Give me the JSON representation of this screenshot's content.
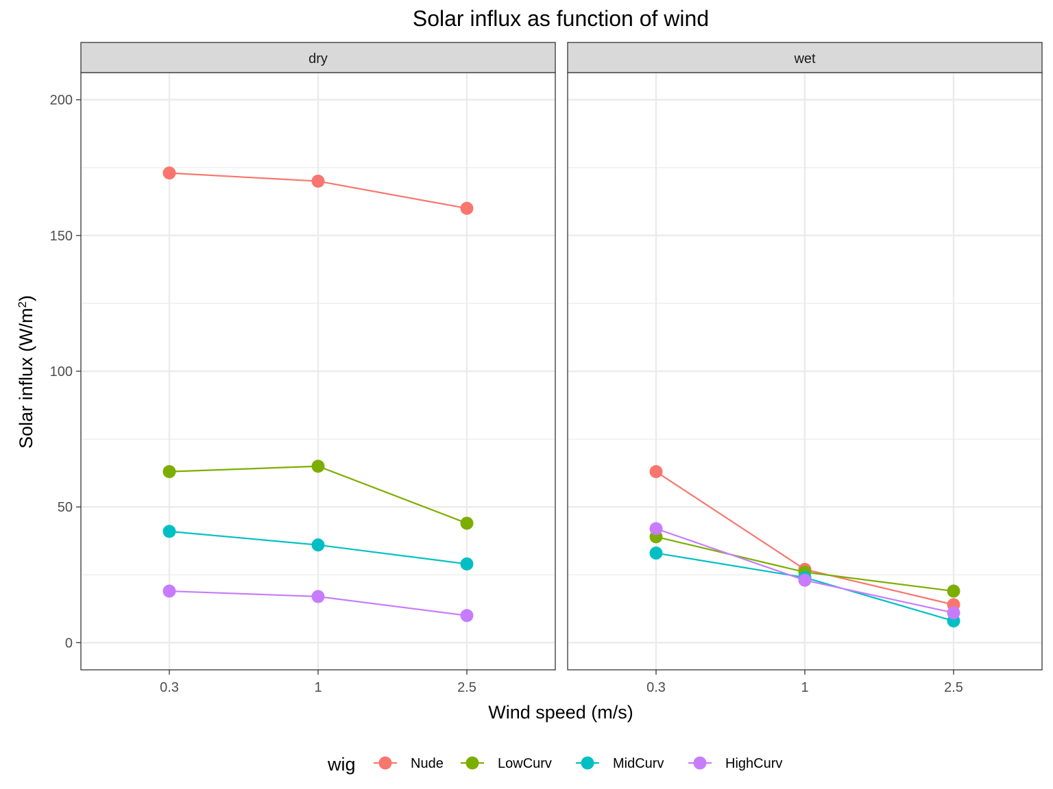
{
  "chart_data": {
    "type": "line",
    "title": "Solar influx as function of wind",
    "xlabel": "Wind speed (m/s)",
    "ylabel": "Solar influx (W/m²)",
    "ylabel_parts": {
      "before": "Solar influx (W/m",
      "sup": "2",
      "after": ")"
    },
    "categories": [
      "0.3",
      "1",
      "2.5"
    ],
    "y_ticks": [
      0,
      50,
      100,
      150,
      200
    ],
    "ylim": [
      -10,
      210
    ],
    "grid": true,
    "legend": {
      "title": "wig",
      "position": "bottom"
    },
    "series_styles": [
      {
        "name": "Nude",
        "color": "#F8766D"
      },
      {
        "name": "LowCurv",
        "color": "#7CAE00"
      },
      {
        "name": "MidCurv",
        "color": "#00BFC4"
      },
      {
        "name": "HighCurv",
        "color": "#C77CFF"
      }
    ],
    "panels": [
      {
        "label": "dry",
        "series": [
          {
            "name": "Nude",
            "values": [
              173,
              170,
              160
            ]
          },
          {
            "name": "LowCurv",
            "values": [
              63,
              65,
              44
            ]
          },
          {
            "name": "MidCurv",
            "values": [
              41,
              36,
              29
            ]
          },
          {
            "name": "HighCurv",
            "values": [
              19,
              17,
              10
            ]
          }
        ]
      },
      {
        "label": "wet",
        "series": [
          {
            "name": "Nude",
            "values": [
              63,
              27,
              14
            ]
          },
          {
            "name": "LowCurv",
            "values": [
              39,
              26,
              19
            ]
          },
          {
            "name": "MidCurv",
            "values": [
              33,
              24,
              8
            ]
          },
          {
            "name": "HighCurv",
            "values": [
              42,
              23,
              11
            ]
          }
        ]
      }
    ]
  }
}
